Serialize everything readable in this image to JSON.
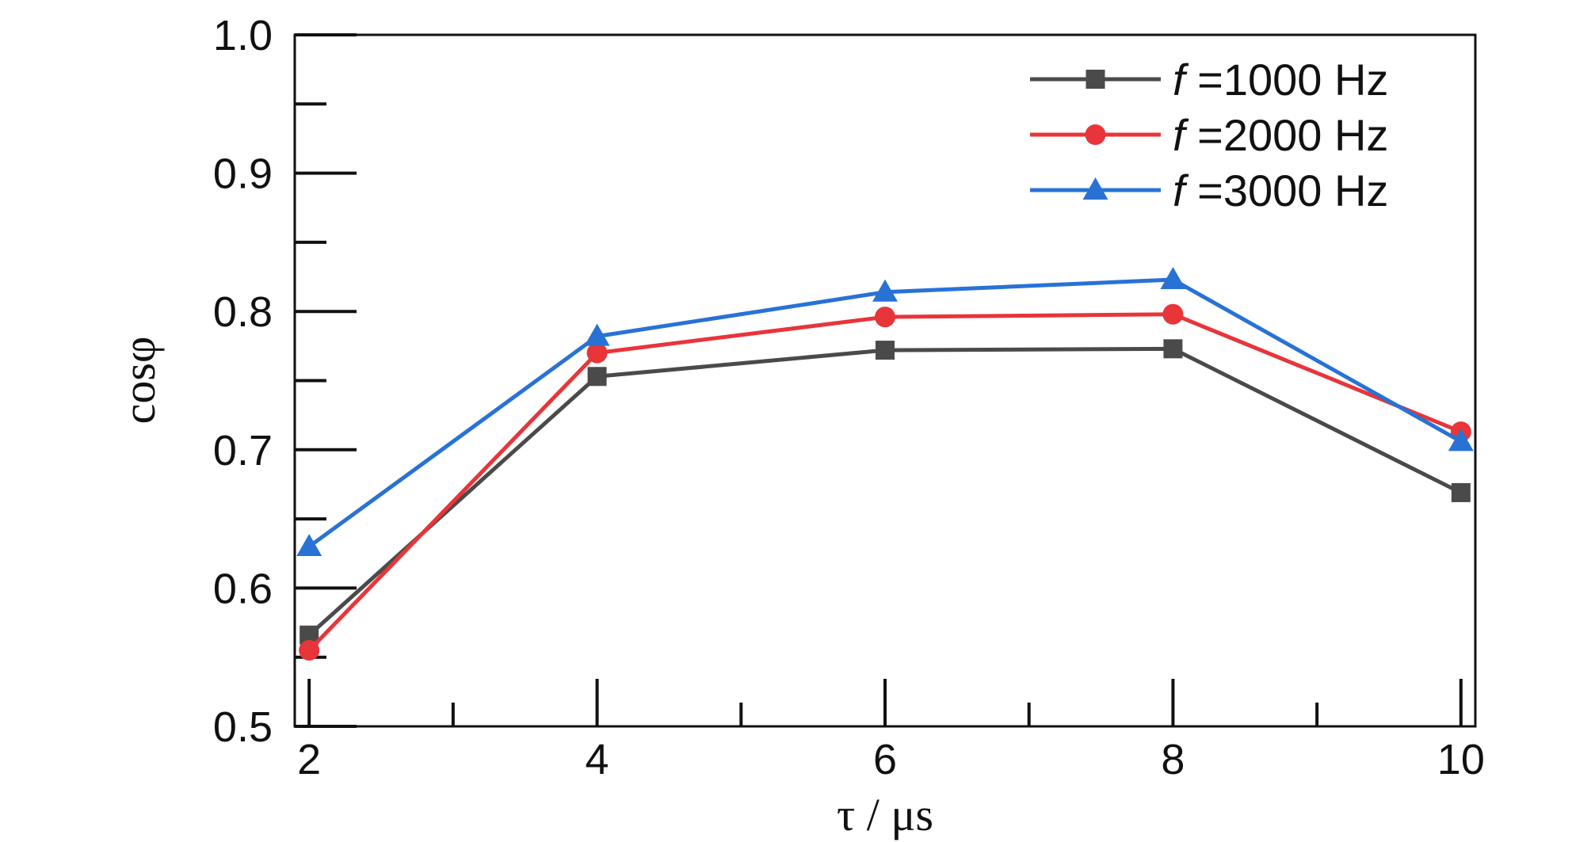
{
  "chart_data": {
    "type": "line",
    "title": "",
    "xlabel": "τ / μs",
    "ylabel": "cosφ",
    "x": [
      2,
      4,
      6,
      8,
      10
    ],
    "xlim": [
      1.9,
      10.1
    ],
    "ylim": [
      0.5,
      1.0
    ],
    "x_ticks": [
      2,
      4,
      6,
      8,
      10
    ],
    "x_tick_labels": [
      "2",
      "4",
      "6",
      "8",
      "10"
    ],
    "y_ticks": [
      0.5,
      0.6,
      0.7,
      0.8,
      0.9,
      1.0
    ],
    "y_tick_labels": [
      "0.5",
      "0.6",
      "0.7",
      "0.8",
      "0.9",
      "1.0"
    ],
    "grid": false,
    "legend_position": "top-right",
    "series": [
      {
        "name": "f =1000 Hz",
        "name_italic": "f",
        "name_rest": " =1000 Hz",
        "marker": "square",
        "color": "#4a4a4a",
        "values": [
          0.566,
          0.753,
          0.772,
          0.773,
          0.669
        ]
      },
      {
        "name": "f =2000 Hz",
        "name_italic": "f",
        "name_rest": " =2000 Hz",
        "marker": "circle",
        "color": "#e8353a",
        "values": [
          0.555,
          0.77,
          0.796,
          0.798,
          0.713
        ]
      },
      {
        "name": "f =3000 Hz",
        "name_italic": "f",
        "name_rest": " =3000 Hz",
        "marker": "triangle",
        "color": "#2872d6",
        "values": [
          0.63,
          0.782,
          0.814,
          0.823,
          0.706
        ]
      }
    ]
  }
}
